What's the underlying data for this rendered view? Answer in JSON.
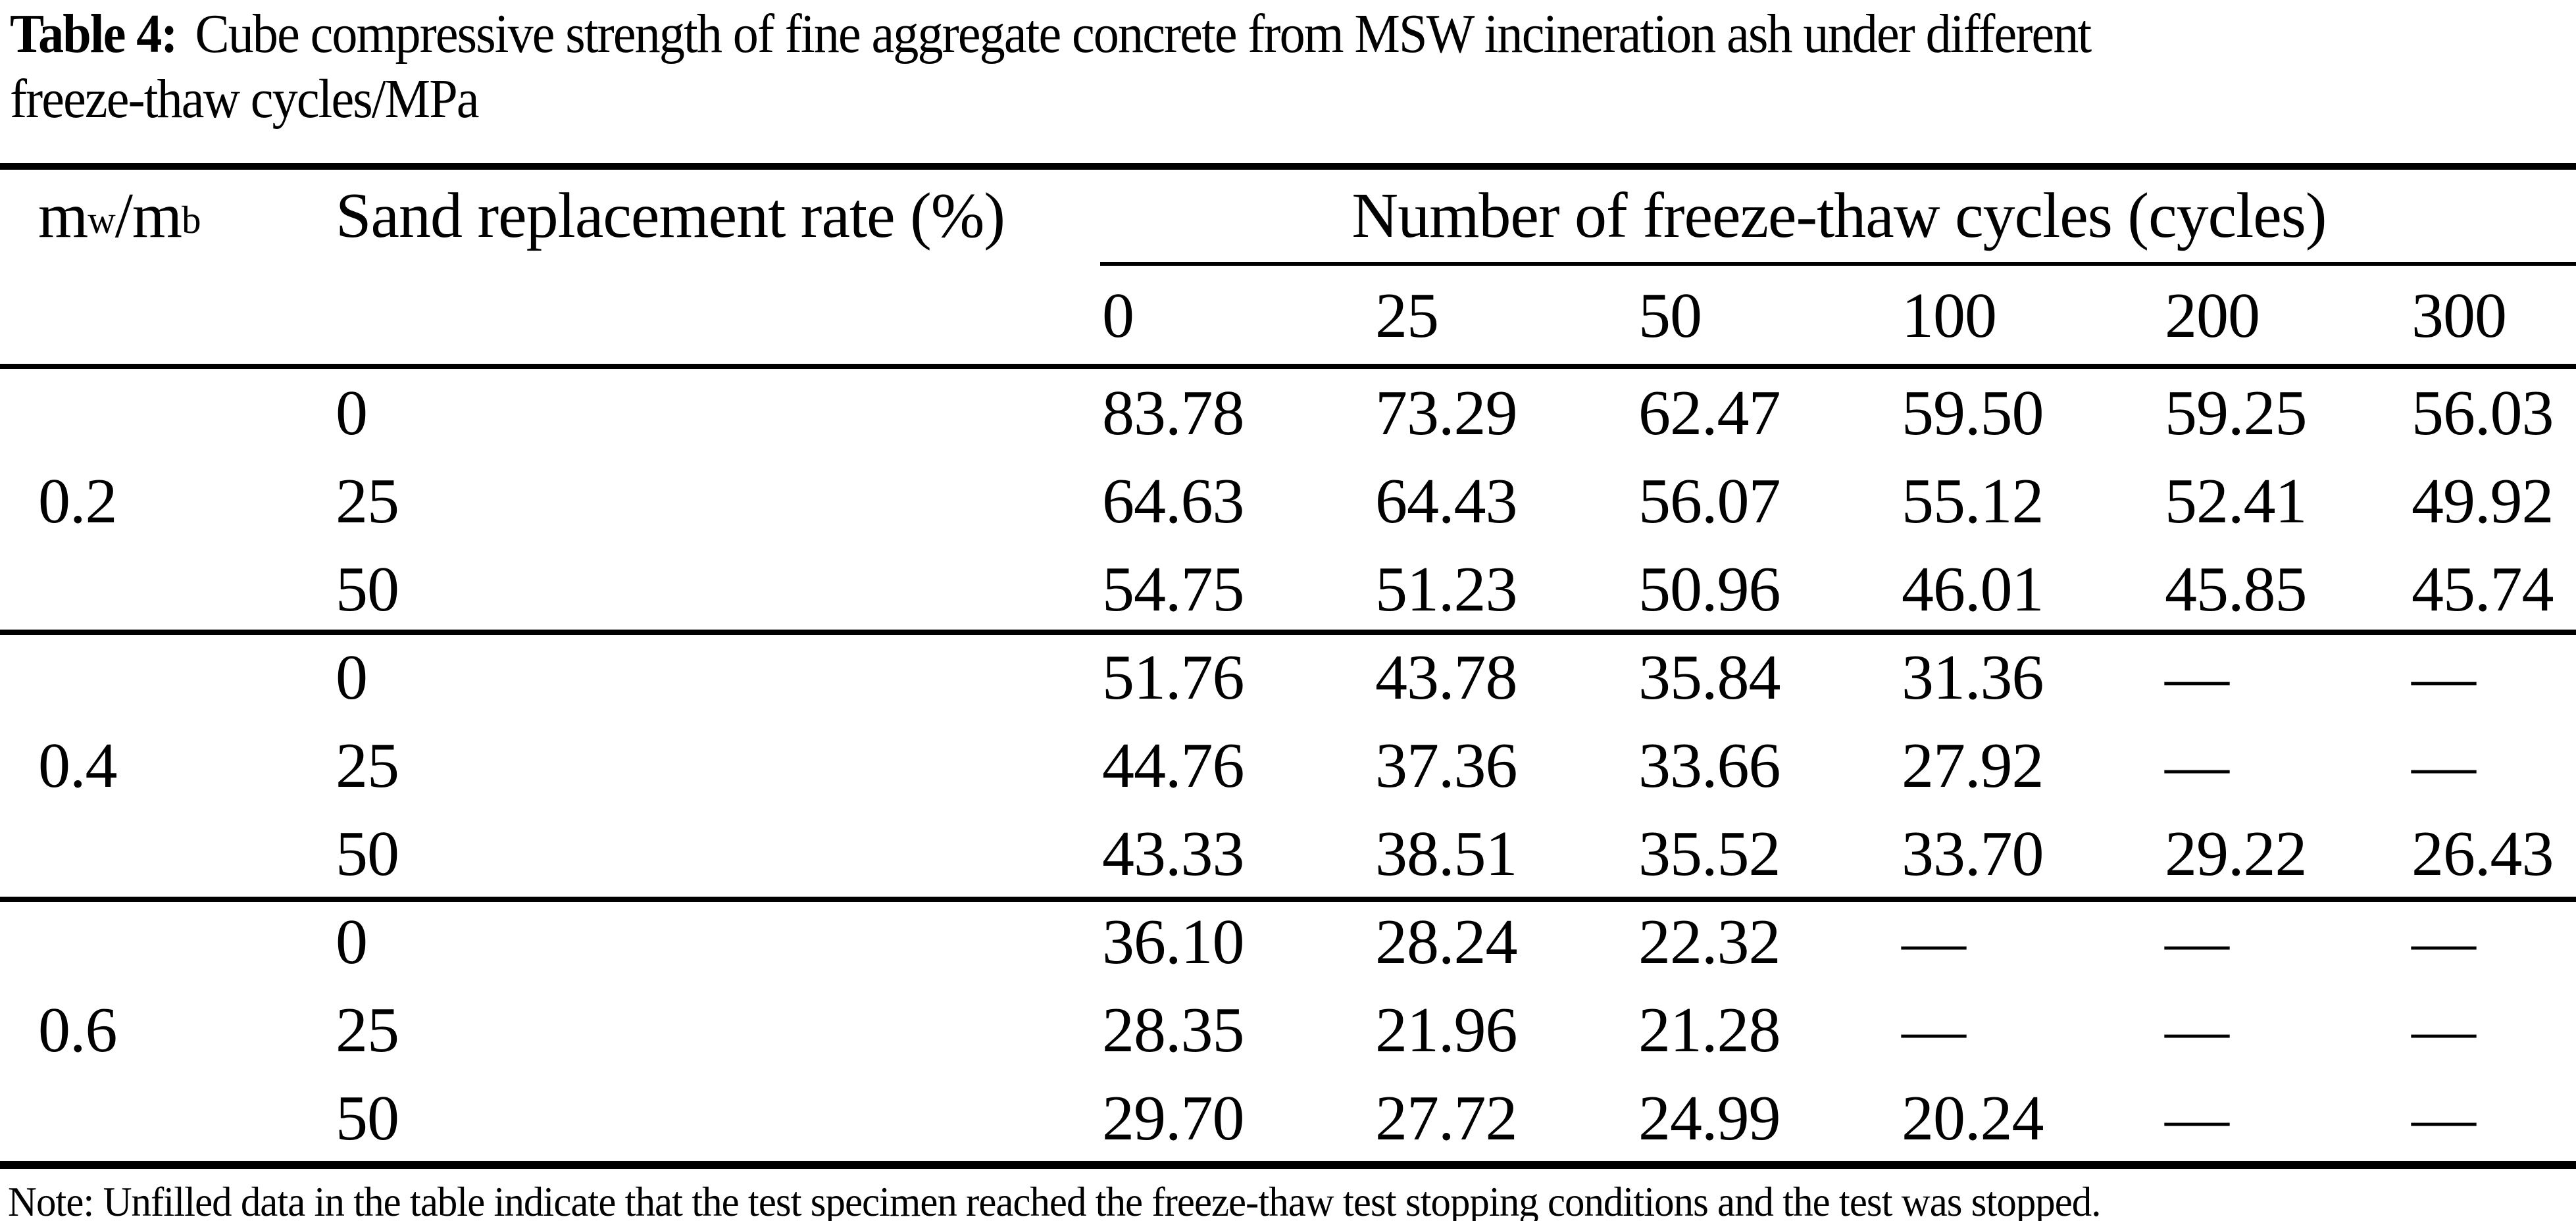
{
  "title": {
    "label": "Table 4:",
    "line1": "Cube compressive strength of fine aggregate concrete from MSW incineration ash under different",
    "line2": "freeze-thaw cycles/MPa"
  },
  "header": {
    "ratio": {
      "base1": "m",
      "sub1": "w",
      "base2": "/m",
      "sub2": "b"
    },
    "sand": "Sand replacement rate (%)",
    "cycles_group": "Number of freeze-thaw cycles (cycles)",
    "cycle_columns": [
      "0",
      "25",
      "50",
      "100",
      "200",
      "300"
    ]
  },
  "groups": [
    {
      "ratio": "0.2",
      "rows": [
        {
          "sand": "0",
          "values": [
            "83.78",
            "73.29",
            "62.47",
            "59.50",
            "59.25",
            "56.03"
          ]
        },
        {
          "sand": "25",
          "values": [
            "64.63",
            "64.43",
            "56.07",
            "55.12",
            "52.41",
            "49.92"
          ]
        },
        {
          "sand": "50",
          "values": [
            "54.75",
            "51.23",
            "50.96",
            "46.01",
            "45.85",
            "45.74"
          ]
        }
      ]
    },
    {
      "ratio": "0.4",
      "rows": [
        {
          "sand": "0",
          "values": [
            "51.76",
            "43.78",
            "35.84",
            "31.36",
            "—",
            "—"
          ]
        },
        {
          "sand": "25",
          "values": [
            "44.76",
            "37.36",
            "33.66",
            "27.92",
            "—",
            "—"
          ]
        },
        {
          "sand": "50",
          "values": [
            "43.33",
            "38.51",
            "35.52",
            "33.70",
            "29.22",
            "26.43"
          ]
        }
      ]
    },
    {
      "ratio": "0.6",
      "rows": [
        {
          "sand": "0",
          "values": [
            "36.10",
            "28.24",
            "22.32",
            "—",
            "—",
            "—"
          ]
        },
        {
          "sand": "25",
          "values": [
            "28.35",
            "21.96",
            "21.28",
            "—",
            "—",
            "—"
          ]
        },
        {
          "sand": "50",
          "values": [
            "29.70",
            "27.72",
            "24.99",
            "20.24",
            "—",
            "—"
          ]
        }
      ]
    }
  ],
  "note": "Note: Unfilled data in the table indicate that the test specimen reached the freeze-thaw test stopping conditions and the test was stopped.",
  "colors": {
    "text": "#000000",
    "background": "#ffffff",
    "rule": "#000000"
  }
}
